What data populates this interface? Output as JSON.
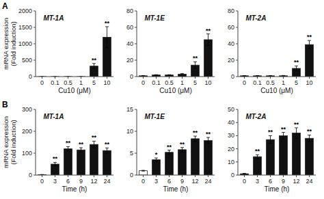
{
  "chart_data": [
    {
      "type": "bar",
      "title": "MT-1A",
      "x_label": "Cu10 (μM)",
      "y_label": "mRNA expression\n(Fold induction)",
      "categories": [
        "0",
        "0.1",
        "0.5",
        "1",
        "5",
        "10"
      ],
      "values": [
        1,
        1,
        1,
        1,
        320,
        1200
      ],
      "errors": [
        0.3,
        0.3,
        0.3,
        0.3,
        80,
        320
      ],
      "color": "#111111",
      "ylim": [
        0,
        2000
      ],
      "yticks": [
        0,
        500,
        1000,
        1500,
        2000
      ],
      "grid": false,
      "annotations": [
        {
          "text": "A"
        },
        {
          "text": "**",
          "category": "5"
        },
        {
          "text": "**",
          "category": "10"
        }
      ]
    },
    {
      "type": "bar",
      "title": "MT-1E",
      "x_label": "Cu10 (μM)",
      "categories": [
        "0",
        "0.1",
        "0.5",
        "1",
        "5",
        "10"
      ],
      "values": [
        1,
        2,
        2,
        3,
        14,
        45
      ],
      "errors": [
        0.3,
        0.3,
        0.3,
        0.8,
        4,
        7
      ],
      "color": "#111111",
      "ylim": [
        0,
        80
      ],
      "yticks": [
        0,
        20,
        40,
        60,
        80
      ],
      "grid": false,
      "annotations": [
        {
          "text": "**",
          "category": "5"
        },
        {
          "text": "**",
          "category": "10"
        }
      ]
    },
    {
      "type": "bar",
      "title": "MT-2A",
      "x_label": "Cu10 (μM)",
      "categories": [
        "0",
        "0.1",
        "0.5",
        "1",
        "5",
        "10"
      ],
      "values": [
        1,
        1,
        1,
        1,
        10,
        39
      ],
      "errors": [
        0.2,
        0.2,
        0.2,
        0.4,
        3,
        5
      ],
      "color": "#111111",
      "ylim": [
        0,
        80
      ],
      "yticks": [
        0,
        20,
        40,
        60,
        80
      ],
      "grid": false,
      "annotations": [
        {
          "text": "**",
          "category": "5"
        },
        {
          "text": "**",
          "category": "10"
        }
      ]
    },
    {
      "type": "bar",
      "title": "MT-1A",
      "x_label": "Time (h)",
      "y_label": "mRNA expression\n(Fold induction)",
      "categories": [
        "0",
        "3",
        "6",
        "9",
        "12",
        "24"
      ],
      "values": [
        2,
        50,
        120,
        115,
        140,
        112
      ],
      "errors": [
        0.5,
        8,
        10,
        10,
        15,
        12
      ],
      "color": "#111111",
      "ylim": [
        0,
        300
      ],
      "yticks": [
        0,
        100,
        200,
        300
      ],
      "grid": false,
      "annotations": [
        {
          "text": "B"
        },
        {
          "text": "**",
          "category": "3"
        },
        {
          "text": "**",
          "category": "6"
        },
        {
          "text": "**",
          "category": "9"
        },
        {
          "text": "**",
          "category": "12"
        },
        {
          "text": "**",
          "category": "24"
        }
      ]
    },
    {
      "type": "bar",
      "title": "MT-1E",
      "x_label": "Time (h)",
      "categories": [
        "0",
        "3",
        "6",
        "9",
        "12",
        "24"
      ],
      "values": [
        1,
        3.5,
        5.2,
        5.8,
        8.3,
        7.9
      ],
      "errors": [
        0.08,
        0.4,
        0.5,
        0.5,
        0.6,
        0.7
      ],
      "colors": [
        "white",
        "#111111",
        "#111111",
        "#111111",
        "#111111",
        "#111111"
      ],
      "ylim": [
        0,
        15
      ],
      "yticks": [
        0,
        5,
        10,
        15
      ],
      "grid": false,
      "annotations": [
        {
          "text": "*",
          "category": "3"
        },
        {
          "text": "**",
          "category": "6"
        },
        {
          "text": "**",
          "category": "9"
        },
        {
          "text": "**",
          "category": "12"
        },
        {
          "text": "**",
          "category": "24"
        }
      ]
    },
    {
      "type": "bar",
      "title": "MT-2A",
      "x_label": "Time (h)",
      "categories": [
        "0",
        "3",
        "6",
        "9",
        "12",
        "24"
      ],
      "values": [
        1,
        14,
        27,
        30,
        32,
        28
      ],
      "errors": [
        0.3,
        1.5,
        3,
        2.5,
        4,
        2.5
      ],
      "color": "#111111",
      "ylim": [
        0,
        50
      ],
      "yticks": [
        0,
        10,
        20,
        30,
        40,
        50
      ],
      "grid": false,
      "annotations": [
        {
          "text": "**",
          "category": "3"
        },
        {
          "text": "**",
          "category": "6"
        },
        {
          "text": "**",
          "category": "9"
        },
        {
          "text": "**",
          "category": "12"
        },
        {
          "text": "**",
          "category": "24"
        }
      ]
    }
  ]
}
